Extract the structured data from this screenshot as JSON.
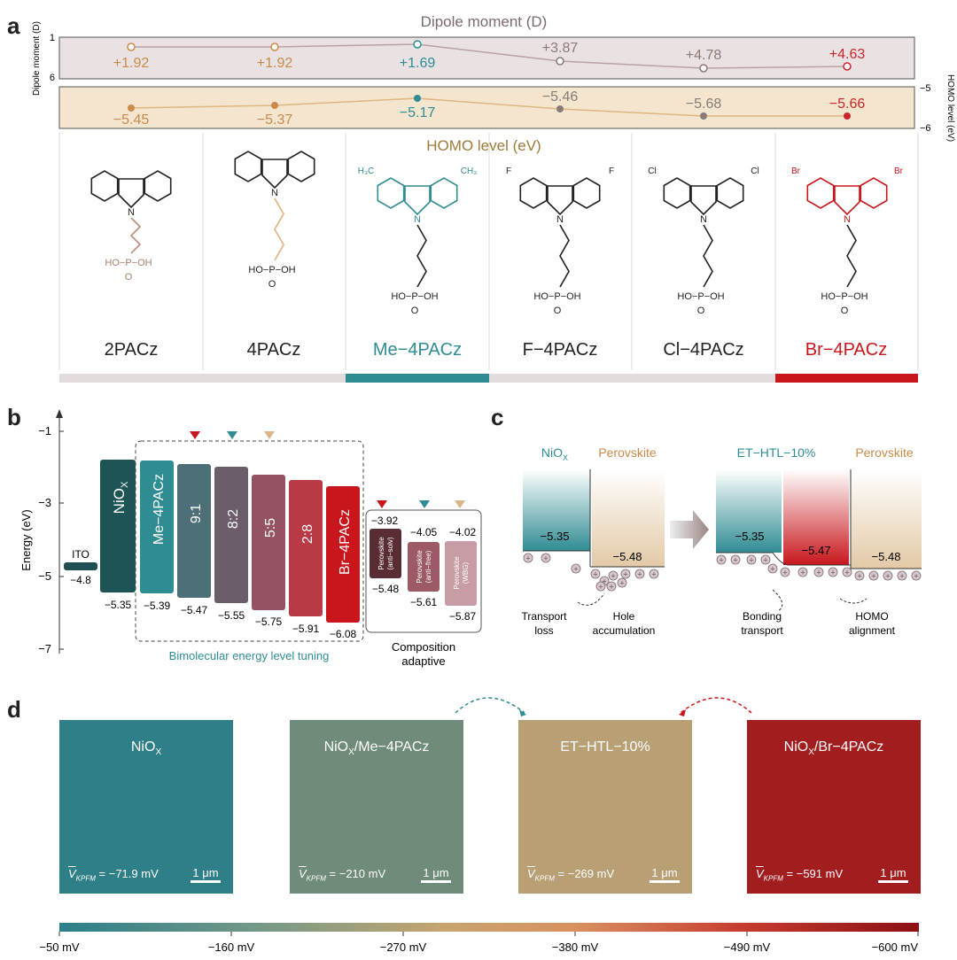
{
  "panels": {
    "a": "a",
    "b": "b",
    "c": "c",
    "d": "d"
  },
  "panel_a": {
    "dipole_title": "Dipole moment (D)",
    "dipole_axis": "Dipole moment (D)",
    "dipole_ticks": [
      "1",
      "6"
    ],
    "dipole_values": [
      "+1.92",
      "+1.92",
      "+1.69",
      "+3.87",
      "+4.78",
      "+4.63"
    ],
    "homo_title": "HOMO level (eV)",
    "homo_axis": "HOMO level (eV)",
    "homo_ticks": [
      "−5",
      "−6"
    ],
    "homo_values": [
      "−5.45",
      "−5.37",
      "−5.17",
      "−5.46",
      "−5.68",
      "−5.66"
    ],
    "molecules": [
      "2PACz",
      "4PACz",
      "Me−4PACz",
      "F−4PACz",
      "Cl−4PACz",
      "Br−4PACz"
    ],
    "colors": [
      "#c98a4a",
      "#c98a4a",
      "#2f8c93",
      "#8a7a78",
      "#8a7a78",
      "#c8262a"
    ]
  },
  "panel_b": {
    "y_axis": "Energy (eV)",
    "y_ticks": [
      "−1",
      "−3",
      "−5",
      "−7"
    ],
    "bars": [
      {
        "label": "ITO",
        "value": "−4.8"
      },
      {
        "label": "NiOX",
        "value": "−5.35"
      },
      {
        "label": "Me−4PACz",
        "value": "−5.39"
      },
      {
        "label": "9:1",
        "value": "−5.47"
      },
      {
        "label": "8:2",
        "value": "−5.55"
      },
      {
        "label": "5:5",
        "value": "−5.75"
      },
      {
        "label": "2:8",
        "value": "−5.91"
      },
      {
        "label": "Br−4PACz",
        "value": "−6.08"
      }
    ],
    "perovskites": [
      {
        "label": "Perovskite (anti−solv)",
        "top": "−3.92",
        "bottom": "−5.48"
      },
      {
        "label": "Perovskite (anti−free)",
        "top": "−4.05",
        "bottom": "−5.61"
      },
      {
        "label": "Perovskite (WBG)",
        "top": "−4.02",
        "bottom": "−5.87"
      }
    ],
    "bimolecular_caption": "Bimolecular energy level tuning",
    "composition_caption_1": "Composition",
    "composition_caption_2": "adaptive"
  },
  "panel_c": {
    "left_htl": "NiO",
    "left_htl_sub": "X",
    "perovskite": "Perovskite",
    "right_htl": "ET−HTL−10%",
    "left_values": [
      "−5.35",
      "−5.48"
    ],
    "right_values": [
      "−5.35",
      "−5.47",
      "−5.48"
    ],
    "captions": [
      "Transport",
      "loss",
      "Hole",
      "accumulation",
      "Bonding",
      "transport",
      "HOMO",
      "alignment"
    ]
  },
  "panel_d": {
    "images": [
      {
        "title": "NiO",
        "sub": "X",
        "title2": "",
        "value": "= −71.9 mV",
        "color": "#2e7f87"
      },
      {
        "title": "NiO",
        "sub": "X",
        "title2": "/Me−4PACz",
        "value": "= −210 mV",
        "color": "#6f8b79"
      },
      {
        "title": "ET−HTL−10%",
        "sub": "",
        "title2": "",
        "value": "= −269 mV",
        "color": "#b9a074"
      },
      {
        "title": "NiO",
        "sub": "X",
        "title2": "/Br−4PACz",
        "value": "= −591 mV",
        "color": "#a11d1e"
      }
    ],
    "v_label": "V",
    "v_sub": "KPFM",
    "scale_label": "1 μm",
    "colorbar_ticks": [
      "−50 mV",
      "−160 mV",
      "−270 mV",
      "−380 mV",
      "−490 mV",
      "−600 mV"
    ]
  }
}
